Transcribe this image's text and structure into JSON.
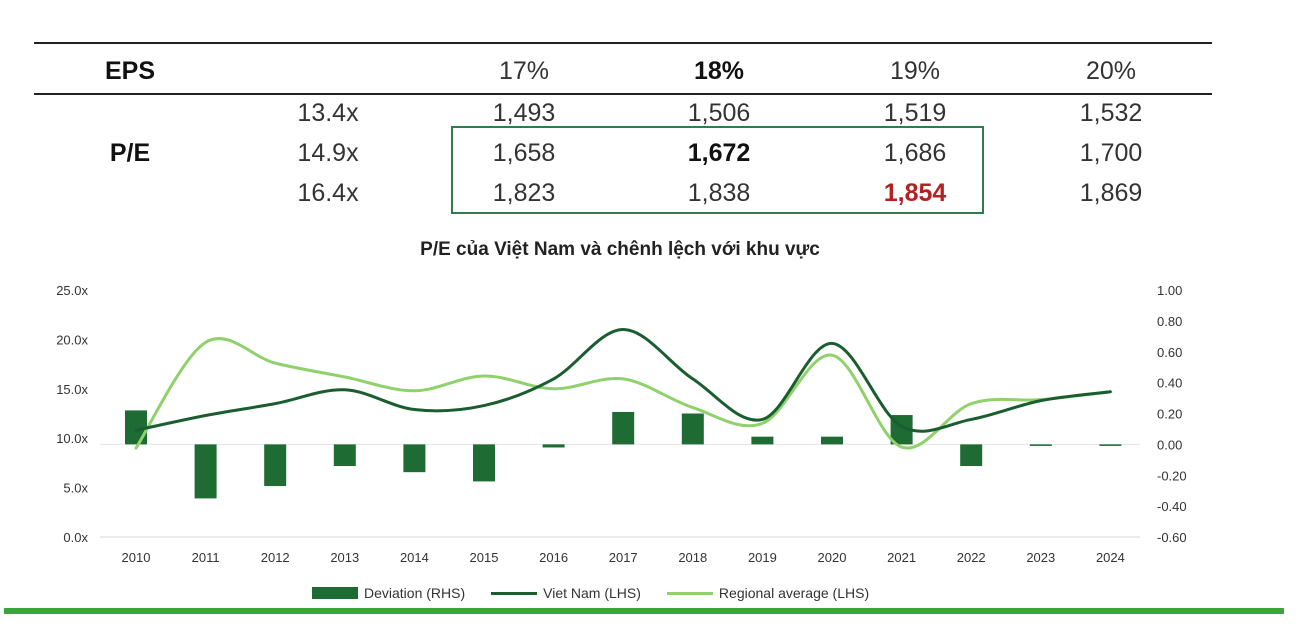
{
  "table": {
    "eps_label": "EPS",
    "pe_label": "P/E",
    "headers": [
      "17%",
      "18%",
      "19%",
      "20%"
    ],
    "rows": [
      {
        "pe": "13.4x",
        "values": [
          "1,493",
          "1,506",
          "1,519",
          "1,532"
        ]
      },
      {
        "pe": "14.9x",
        "values": [
          "1,658",
          "1,672",
          "1,686",
          "1,700"
        ]
      },
      {
        "pe": "16.4x",
        "values": [
          "1,823",
          "1,838",
          "1,854",
          "1,869"
        ]
      }
    ]
  },
  "chart_data": {
    "type": "bar+line",
    "title": "P/E của Việt Nam và chênh lệch với khu vực",
    "categories": [
      "2010",
      "2011",
      "2012",
      "2013",
      "2014",
      "2015",
      "2016",
      "2017",
      "2018",
      "2019",
      "2020",
      "2021",
      "2022",
      "2023",
      "2024"
    ],
    "y_left_ticks": [
      "25.0x",
      "20.0x",
      "15.0x",
      "10.0x",
      "5.0x",
      "0.0x"
    ],
    "y_left_range": [
      0,
      25
    ],
    "y_right_ticks": [
      "1.00",
      "0.80",
      "0.60",
      "0.40",
      "0.20",
      "0.00",
      "-0.20",
      "-0.40",
      "-0.60"
    ],
    "y_right_range": [
      -0.6,
      1.0
    ],
    "series": [
      {
        "name": "Deviation (RHS)",
        "kind": "bar",
        "axis": "right",
        "color": "#1e6b34",
        "values": [
          0.22,
          -0.35,
          -0.27,
          -0.14,
          -0.18,
          -0.24,
          -0.02,
          0.21,
          0.2,
          0.05,
          0.05,
          0.19,
          -0.14,
          -0.01,
          -0.01
        ]
      },
      {
        "name": "Viet Nam (LHS)",
        "kind": "line",
        "axis": "left",
        "color": "#1a5e30",
        "values": [
          10.8,
          12.3,
          13.5,
          14.9,
          12.9,
          13.3,
          16.0,
          21.0,
          16.0,
          11.9,
          19.6,
          11.2,
          11.9,
          13.8,
          14.7
        ]
      },
      {
        "name": "Regional average (LHS)",
        "kind": "line",
        "axis": "left",
        "color": "#8fd16a",
        "values": [
          9.0,
          19.7,
          17.6,
          16.2,
          14.8,
          16.3,
          15.0,
          16.0,
          13.1,
          11.5,
          18.4,
          9.1,
          13.5,
          13.9,
          14.7
        ]
      }
    ],
    "legend": "bottom"
  }
}
